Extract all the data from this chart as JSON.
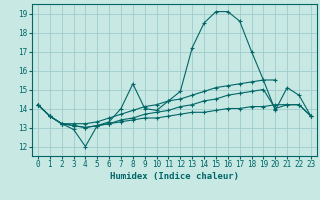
{
  "title": "",
  "xlabel": "Humidex (Indice chaleur)",
  "ylabel": "",
  "background_color": "#c8e8e4",
  "grid_color": "#a0cccc",
  "line_color": "#006666",
  "xlim": [
    -0.5,
    23.5
  ],
  "ylim": [
    11.5,
    19.5
  ],
  "xticks": [
    0,
    1,
    2,
    3,
    4,
    5,
    6,
    7,
    8,
    9,
    10,
    11,
    12,
    13,
    14,
    15,
    16,
    17,
    18,
    19,
    20,
    21,
    22,
    23
  ],
  "yticks": [
    12,
    13,
    14,
    15,
    16,
    17,
    18,
    19
  ],
  "series": [
    [
      14.2,
      13.6,
      13.2,
      12.9,
      12.0,
      13.1,
      13.3,
      14.0,
      15.3,
      14.0,
      13.9,
      14.4,
      14.9,
      17.2,
      18.5,
      19.1,
      19.1,
      18.6,
      17.0,
      15.5,
      13.9,
      15.1,
      14.7,
      13.6
    ],
    [
      14.2,
      13.6,
      13.2,
      13.2,
      13.2,
      13.3,
      13.5,
      13.7,
      13.9,
      14.1,
      14.2,
      14.4,
      14.5,
      14.7,
      14.9,
      15.1,
      15.2,
      15.3,
      15.4,
      15.5,
      15.5,
      null,
      null,
      null
    ],
    [
      14.2,
      13.6,
      13.2,
      13.1,
      13.0,
      13.1,
      13.2,
      13.3,
      13.4,
      13.5,
      13.5,
      13.6,
      13.7,
      13.8,
      13.8,
      13.9,
      14.0,
      14.0,
      14.1,
      14.1,
      14.2,
      14.2,
      14.2,
      13.6
    ],
    [
      14.2,
      13.6,
      13.2,
      13.1,
      13.0,
      13.1,
      13.2,
      13.4,
      13.5,
      13.7,
      13.8,
      13.9,
      14.1,
      14.2,
      14.4,
      14.5,
      14.7,
      14.8,
      14.9,
      15.0,
      14.0,
      14.2,
      14.2,
      13.6
    ]
  ]
}
